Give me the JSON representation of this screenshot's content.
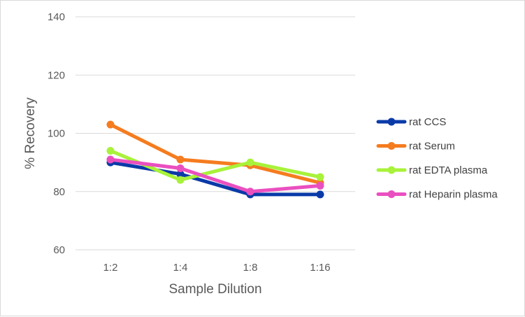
{
  "chart_data": {
    "type": "line",
    "title": "",
    "xlabel": "Sample Dilution",
    "ylabel": "% Recovery",
    "categories": [
      "1:2",
      "1:4",
      "1:8",
      "1:16"
    ],
    "ylim": [
      60,
      140
    ],
    "yticks": [
      60,
      80,
      100,
      120,
      140
    ],
    "grid": true,
    "legend_position": "right",
    "series": [
      {
        "name": "rat CCS",
        "color": "#0a3aa8",
        "values": [
          90,
          86,
          79,
          79
        ]
      },
      {
        "name": "rat Serum",
        "color": "#f57c1f",
        "values": [
          103,
          91,
          89,
          83
        ]
      },
      {
        "name": "rat EDTA plasma",
        "color": "#a8f23a",
        "values": [
          94,
          84,
          90,
          85
        ]
      },
      {
        "name": "rat Heparin plasma",
        "color": "#ea4fc0",
        "values": [
          91,
          88,
          80,
          82
        ]
      }
    ]
  }
}
